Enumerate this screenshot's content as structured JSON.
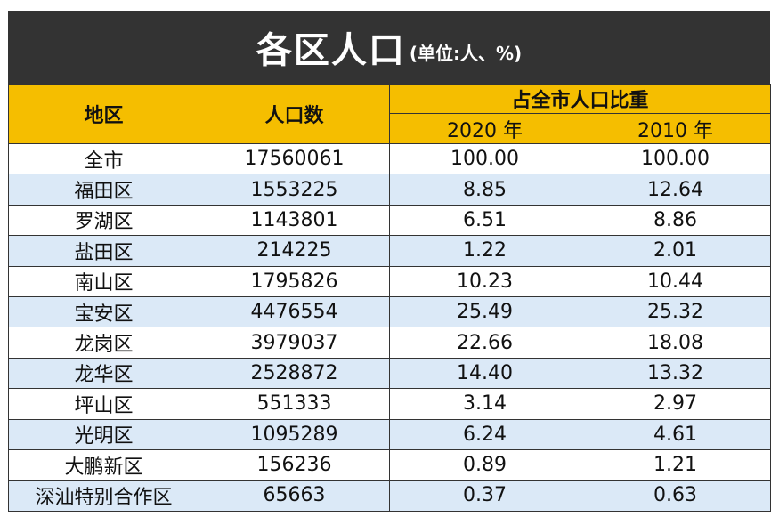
{
  "title": "各区人口",
  "unit": "(单位:人、%)",
  "headers": {
    "region": "地区",
    "population": "人口数",
    "share_group": "占全市人口比重",
    "year_2020": "2020 年",
    "year_2010": "2010 年"
  },
  "rows": [
    {
      "region": "全市",
      "population": "17560061",
      "share_2020": "100.00",
      "share_2010": "100.00"
    },
    {
      "region": "福田区",
      "population": "1553225",
      "share_2020": "8.85",
      "share_2010": "12.64"
    },
    {
      "region": "罗湖区",
      "population": "1143801",
      "share_2020": "6.51",
      "share_2010": "8.86"
    },
    {
      "region": "盐田区",
      "population": "214225",
      "share_2020": "1.22",
      "share_2010": "2.01"
    },
    {
      "region": "南山区",
      "population": "1795826",
      "share_2020": "10.23",
      "share_2010": "10.44"
    },
    {
      "region": "宝安区",
      "population": "4476554",
      "share_2020": "25.49",
      "share_2010": "25.32"
    },
    {
      "region": "龙岗区",
      "population": "3979037",
      "share_2020": "22.66",
      "share_2010": "18.08"
    },
    {
      "region": "龙华区",
      "population": "2528872",
      "share_2020": "14.40",
      "share_2010": "13.32"
    },
    {
      "region": "坪山区",
      "population": "551333",
      "share_2020": "3.14",
      "share_2010": "2.97"
    },
    {
      "region": "光明区",
      "population": "1095289",
      "share_2020": "6.24",
      "share_2010": "4.61"
    },
    {
      "region": "大鹏新区",
      "population": "156236",
      "share_2020": "0.89",
      "share_2010": "1.21"
    },
    {
      "region": "深汕特别合作区",
      "population": "65663",
      "share_2020": "0.37",
      "share_2010": "0.63"
    }
  ],
  "colors": {
    "title_background": "#333333",
    "header_background": "#f5be00",
    "stripe_row": "#dbe9f7"
  }
}
